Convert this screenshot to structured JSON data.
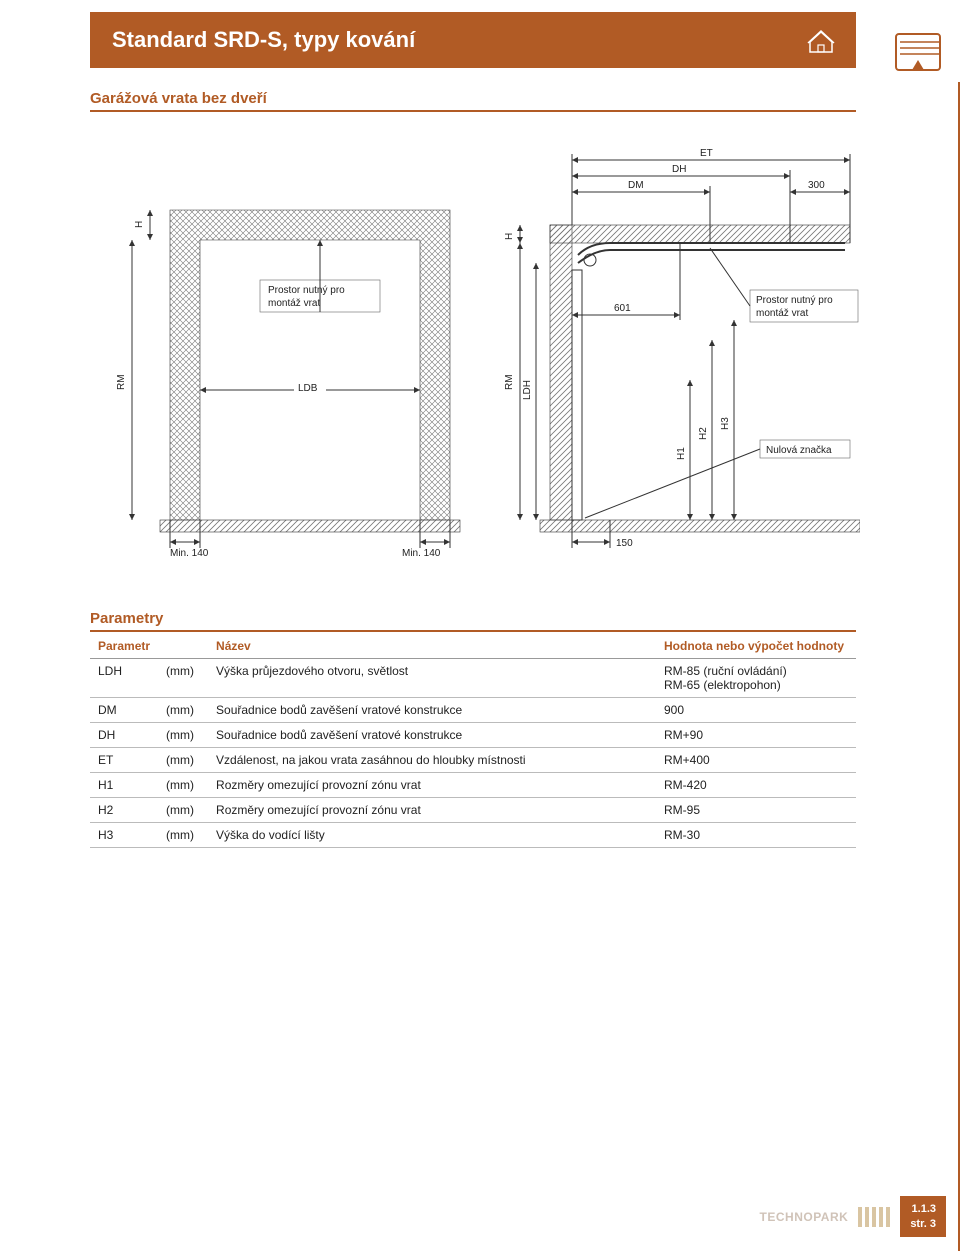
{
  "header": {
    "title": "Standard SRD-S, typy kování",
    "bg_color": "#b15b25",
    "text_color": "#ffffff"
  },
  "subheading": "Garážová vrata bez dveří",
  "diagram": {
    "left": {
      "labels": {
        "H": "H",
        "RM": "RM",
        "LDB": "LDB",
        "min140_left": "Min. 140",
        "min140_right": "Min. 140",
        "note": "Prostor nutný pro\nmontáž vrat"
      }
    },
    "right": {
      "labels": {
        "ET": "ET",
        "DH": "DH",
        "DM": "DM",
        "v300": "300",
        "v601": "601",
        "v150": "150",
        "H": "H",
        "RM": "RM",
        "LDH": "LDH",
        "H1": "H1",
        "H2": "H2",
        "H3": "H3",
        "note": "Prostor nutný pro\nmontáž vrat",
        "nulova": "Nulová značka"
      }
    },
    "colors": {
      "line": "#333333",
      "hatch": "#555555",
      "bg": "#ffffff"
    }
  },
  "params": {
    "title": "Parametry",
    "columns": {
      "c1": "Parametr",
      "c2": "",
      "c3": "Název",
      "c4": "Hodnota nebo výpočet hodnoty"
    },
    "rows": [
      {
        "p": "LDH",
        "u": "(mm)",
        "n": "Výška průjezdového otvoru, světlost",
        "v": "RM-85 (ruční ovládání)\nRM-65 (elektropohon)"
      },
      {
        "p": "DM",
        "u": "(mm)",
        "n": "Souřadnice bodů zavěšení vratové konstrukce",
        "v": "900"
      },
      {
        "p": "DH",
        "u": "(mm)",
        "n": "Souřadnice bodů zavěšení vratové konstrukce",
        "v": "RM+90"
      },
      {
        "p": "ET",
        "u": "(mm)",
        "n": "Vzdálenost, na jakou vrata zasáhnou do hloubky místnosti",
        "v": "RM+400"
      },
      {
        "p": "H1",
        "u": "(mm)",
        "n": "Rozměry omezující provozní zónu vrat",
        "v": "RM-420"
      },
      {
        "p": "H2",
        "u": "(mm)",
        "n": "Rozměry omezující provozní zónu vrat",
        "v": "RM-95"
      },
      {
        "p": "H3",
        "u": "(mm)",
        "n": "Výška do vodící lišty",
        "v": "RM-30"
      }
    ]
  },
  "footer": {
    "brand": "TECHNOPARK",
    "code1": "1.1.3",
    "code2": "str. 3"
  }
}
